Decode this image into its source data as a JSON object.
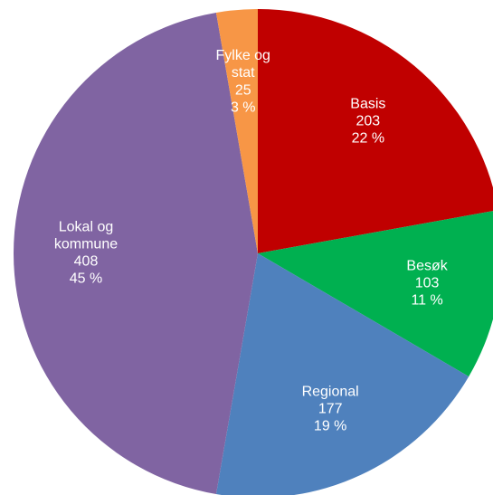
{
  "chart_data": {
    "type": "pie",
    "categories": [
      "Basis",
      "Besøk",
      "Regional",
      "Lokal og kommune",
      "Fylke og stat"
    ],
    "values": [
      203,
      103,
      177,
      408,
      25
    ],
    "percent_labels": [
      "22 %",
      "11 %",
      "19 %",
      "45 %",
      "3 %"
    ],
    "colors": [
      "#c00000",
      "#00b050",
      "#4f81bd",
      "#8064a2",
      "#f79646"
    ]
  }
}
